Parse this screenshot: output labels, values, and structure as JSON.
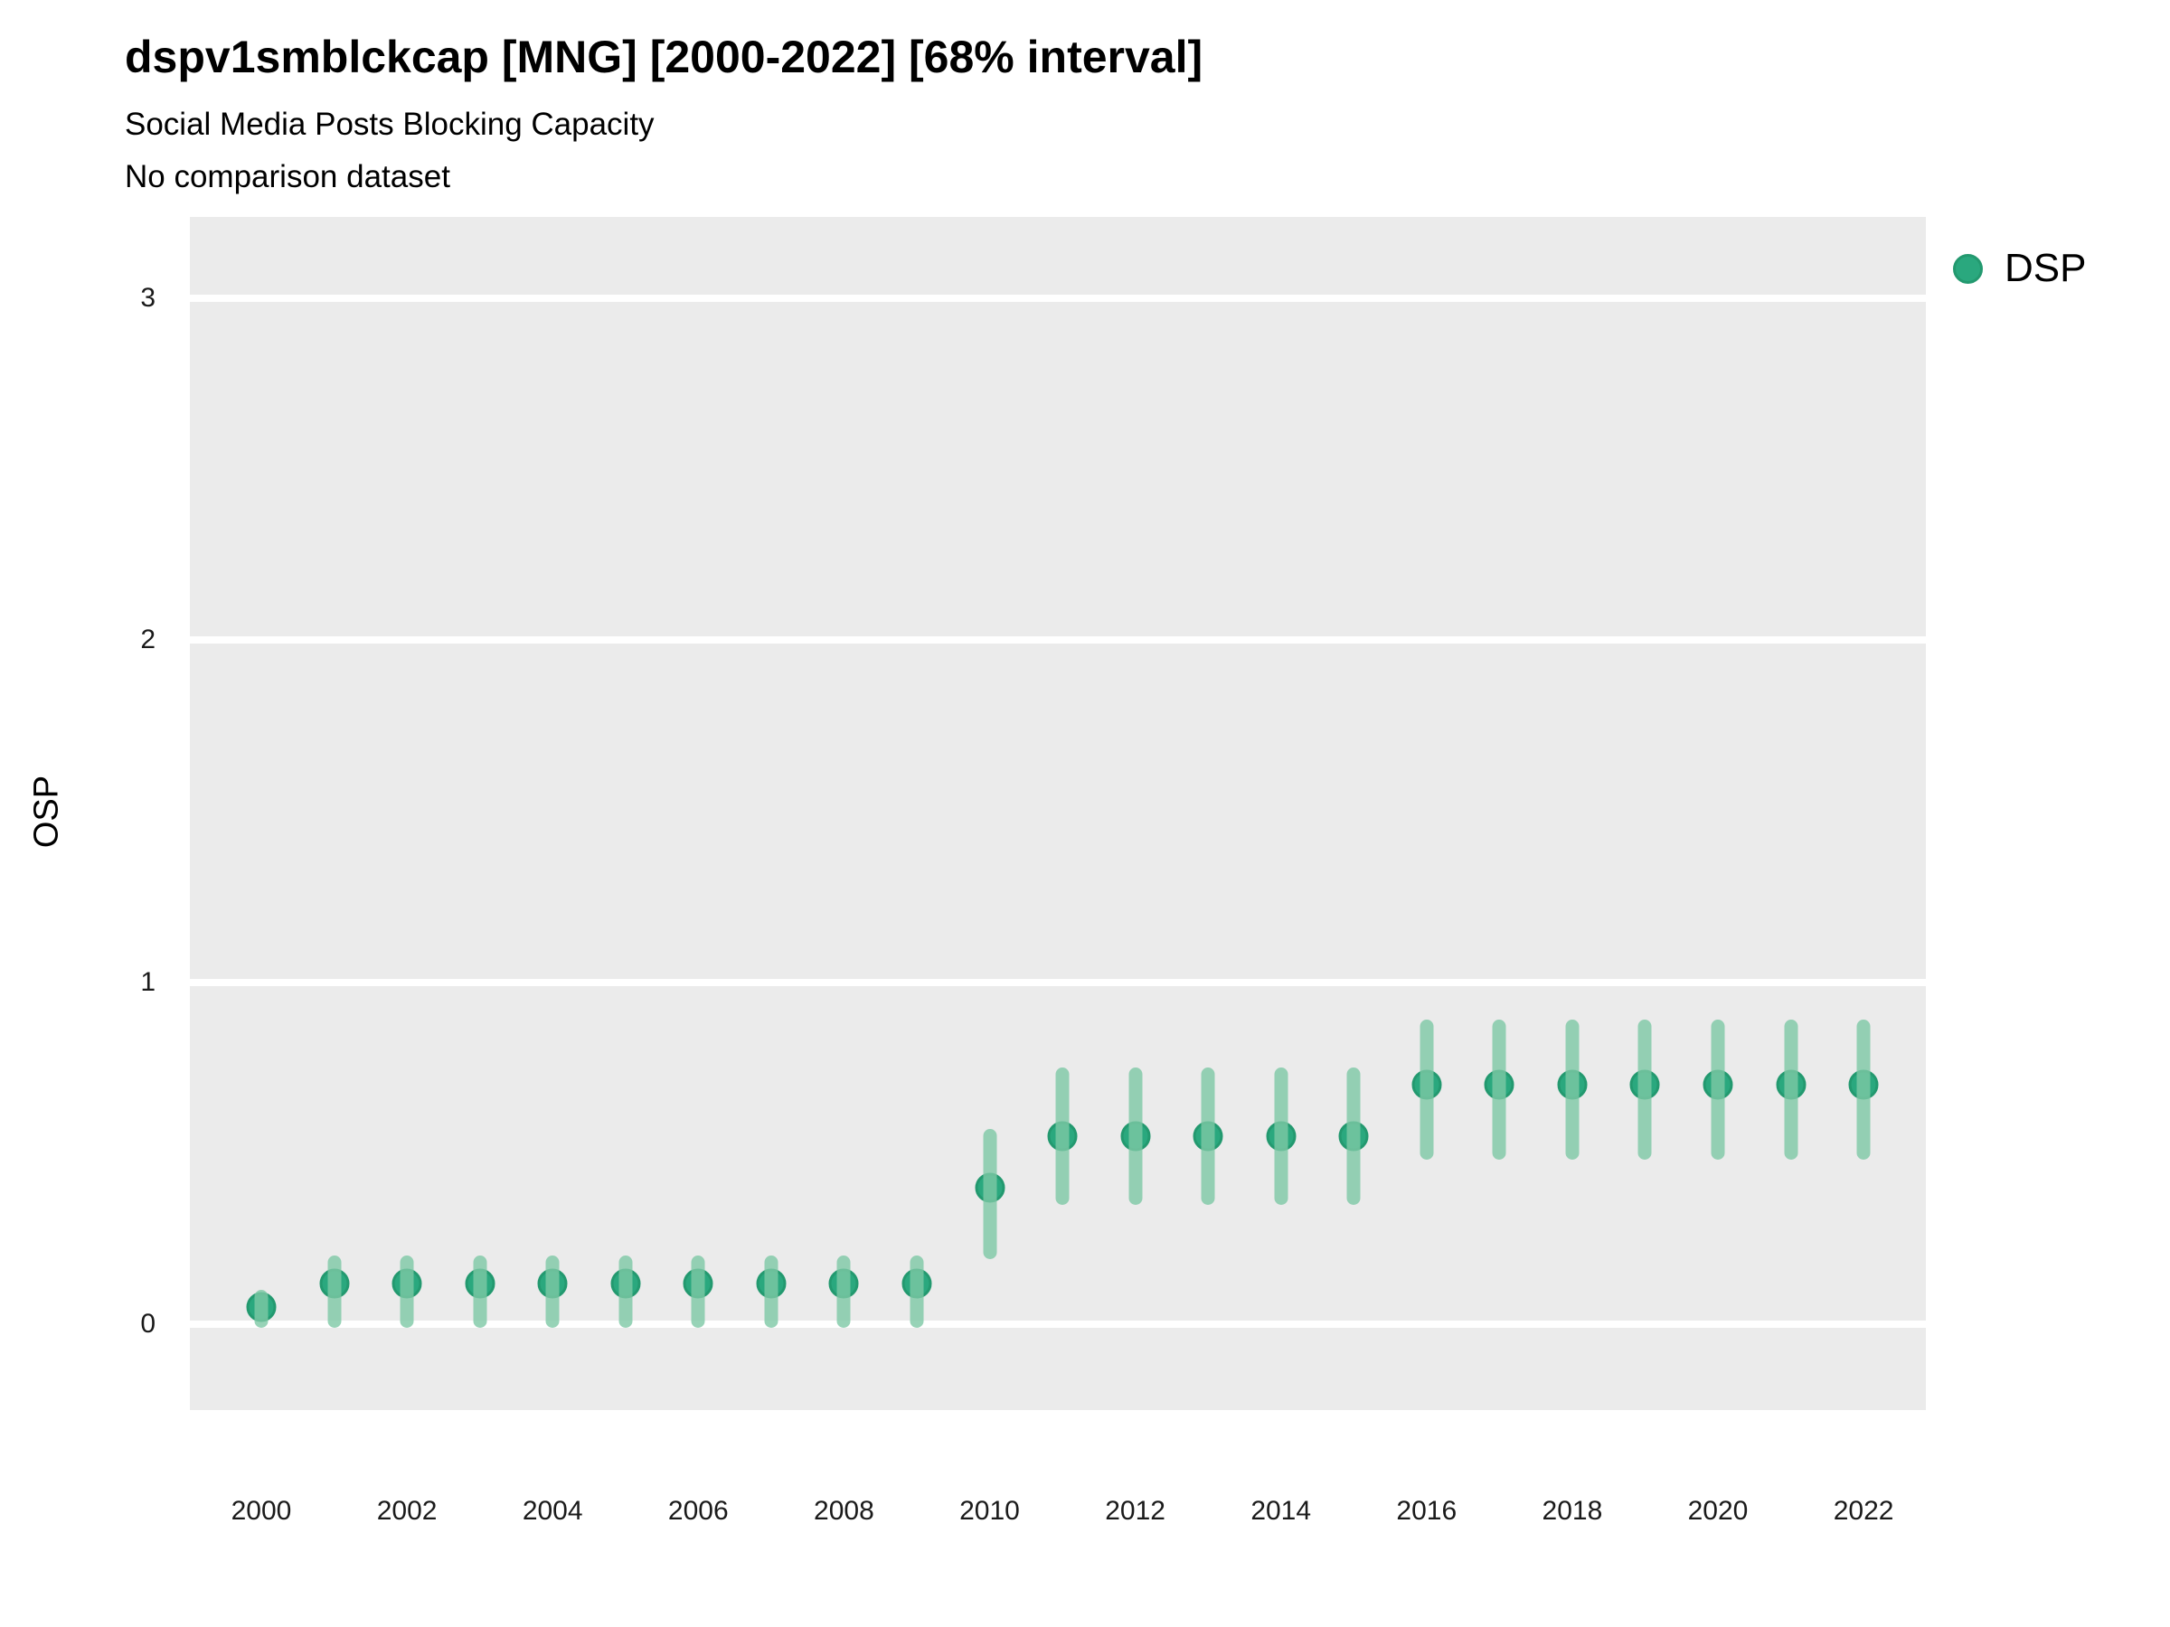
{
  "header": {
    "title": "dspv1smblckcap [MNG] [2000-2022] [68% interval]",
    "subtitle": "Social Media Posts Blocking Capacity",
    "note": "No comparison dataset"
  },
  "axes": {
    "y_title": "OSP",
    "x_title": ""
  },
  "legend": {
    "position": "right",
    "items": [
      {
        "label": "DSP",
        "marker": "circle",
        "color": "#2aa87e"
      }
    ]
  },
  "colors": {
    "point": "#2aa87e",
    "point_border": "#23996f",
    "interval_bar": "#7dc8a5",
    "panel_background": "#ebebeb",
    "gridline": "#ffffff"
  },
  "chart_data": {
    "type": "scatter",
    "subtype": "pointrange (point with 68% interval bars)",
    "title": "dspv1smblckcap [MNG] [2000-2022] [68% interval]",
    "subtitle": "Social Media Posts Blocking Capacity",
    "note": "No comparison dataset",
    "xlabel": "",
    "ylabel": "OSP",
    "interval": "68%",
    "grid": "horizontal white gridlines on gray panel",
    "legend_position": "right",
    "xlim": [
      1999,
      2023
    ],
    "ylim": [
      -0.25,
      3.25
    ],
    "yticks": [
      0,
      1,
      2,
      3
    ],
    "xticks": [
      2000,
      2002,
      2004,
      2006,
      2008,
      2010,
      2012,
      2014,
      2016,
      2018,
      2020,
      2022
    ],
    "series": [
      {
        "name": "DSP",
        "color": "#2aa87e",
        "x": [
          2000,
          2001,
          2002,
          2003,
          2004,
          2005,
          2006,
          2007,
          2008,
          2009,
          2010,
          2011,
          2012,
          2013,
          2014,
          2015,
          2016,
          2017,
          2018,
          2019,
          2020,
          2021,
          2022
        ],
        "y": [
          0.05,
          0.12,
          0.12,
          0.12,
          0.12,
          0.12,
          0.12,
          0.12,
          0.12,
          0.12,
          0.4,
          0.55,
          0.55,
          0.55,
          0.55,
          0.55,
          0.7,
          0.7,
          0.7,
          0.7,
          0.7,
          0.7,
          0.7
        ],
        "y_lo": [
          -0.01,
          -0.01,
          -0.01,
          -0.01,
          -0.01,
          -0.01,
          -0.01,
          -0.01,
          -0.01,
          -0.01,
          0.19,
          0.35,
          0.35,
          0.35,
          0.35,
          0.35,
          0.48,
          0.48,
          0.48,
          0.48,
          0.48,
          0.48,
          0.48
        ],
        "y_hi": [
          0.1,
          0.2,
          0.2,
          0.2,
          0.2,
          0.2,
          0.2,
          0.2,
          0.2,
          0.2,
          0.57,
          0.75,
          0.75,
          0.75,
          0.75,
          0.75,
          0.89,
          0.89,
          0.89,
          0.89,
          0.89,
          0.89,
          0.89
        ]
      }
    ]
  }
}
